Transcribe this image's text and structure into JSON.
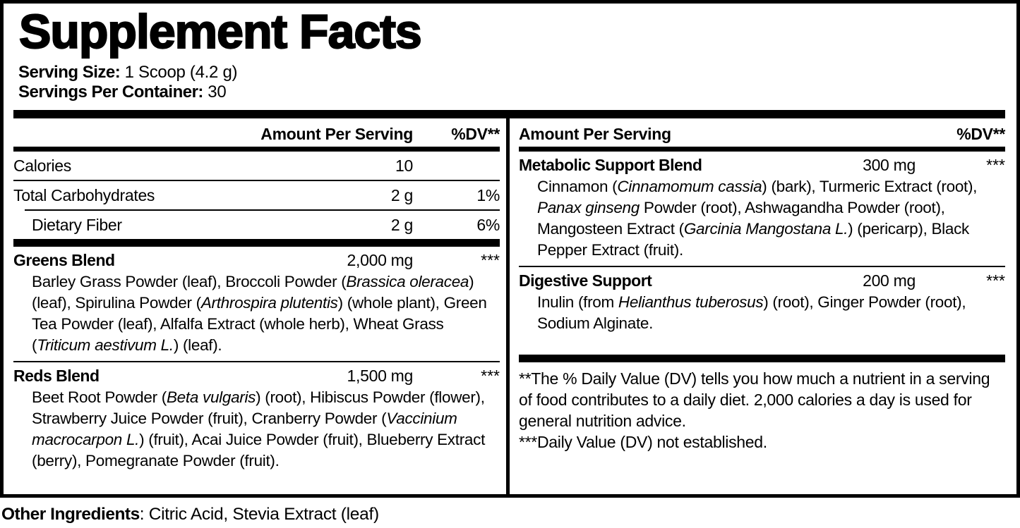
{
  "title": "Supplement Facts",
  "serving": {
    "size_label": "Serving Size:",
    "size_value": " 1 Scoop (4.2 g)",
    "count_label": "Servings Per Container:",
    "count_value": " 30"
  },
  "columns": {
    "amount_header": "Amount Per Serving",
    "dv_header": "%DV**"
  },
  "left": {
    "nutrients": [
      {
        "name": "Calories",
        "amount": "10",
        "dv": ""
      },
      {
        "name": "Total Carbohydrates",
        "amount": "2 g",
        "dv": "1%"
      },
      {
        "name": "Dietary Fiber",
        "amount": "2 g",
        "dv": "6%"
      }
    ],
    "blends": [
      {
        "name": "Greens Blend",
        "amount": "2,000 mg",
        "dv": "***",
        "desc": [
          {
            "t": "Barley Grass Powder (leaf), Broccoli Powder ("
          },
          {
            "t": "Brassica oleracea",
            "i": true
          },
          {
            "t": ") (leaf), Spirulina Powder ("
          },
          {
            "t": "Arthrospira plutentis",
            "i": true
          },
          {
            "t": ") (whole plant), Green Tea Powder (leaf), Alfalfa Extract (whole herb), Wheat Grass ("
          },
          {
            "t": "Triticum aestivum L.",
            "i": true
          },
          {
            "t": ") (leaf)."
          }
        ]
      },
      {
        "name": "Reds Blend",
        "amount": "1,500 mg",
        "dv": "***",
        "desc": [
          {
            "t": "Beet Root Powder ("
          },
          {
            "t": "Beta vulgaris",
            "i": true
          },
          {
            "t": ") (root), Hibiscus Powder (flower), Strawberry Juice Powder (fruit), Cranberry Powder ("
          },
          {
            "t": "Vaccinium macrocarpon L.",
            "i": true
          },
          {
            "t": ") (fruit), Acai Juice Powder (fruit), Blueberry Extract (berry), Pomegranate Powder (fruit)."
          }
        ]
      }
    ]
  },
  "right": {
    "blends": [
      {
        "name": "Metabolic Support Blend",
        "amount": "300 mg",
        "dv": "***",
        "desc": [
          {
            "t": "Cinnamon ("
          },
          {
            "t": "Cinnamomum cassia",
            "i": true
          },
          {
            "t": ") (bark), Turmeric Extract (root), "
          },
          {
            "t": "Panax ginseng",
            "i": true
          },
          {
            "t": " Powder (root), Ashwagandha Powder (root), Mangosteen Extract ("
          },
          {
            "t": "Garcinia Mangostana L.",
            "i": true
          },
          {
            "t": ") (pericarp), Black Pepper Extract (fruit)."
          }
        ]
      },
      {
        "name": "Digestive Support",
        "amount": "200 mg",
        "dv": "***",
        "desc": [
          {
            "t": "Inulin (from "
          },
          {
            "t": "Helianthus tuberosus",
            "i": true
          },
          {
            "t": ") (root), Ginger Powder (root), Sodium Alginate."
          }
        ]
      }
    ],
    "footnotes": [
      "**The % Daily Value (DV) tells you how much a nutrient in a serving of food contributes to a daily diet. 2,000 calories a day is used for general nutrition advice.",
      "***Daily Value (DV) not established."
    ]
  },
  "other_ingredients": {
    "label": "Other Ingredients",
    "rest": ": Citric Acid, Stevia Extract (leaf)"
  },
  "colors": {
    "ink": "#000000",
    "background": "#ffffff"
  }
}
